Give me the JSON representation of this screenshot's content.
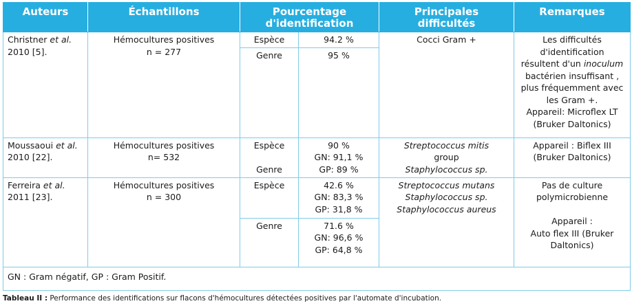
{
  "headers": {
    "auteurs": "Auteurs",
    "echantillons": "Échantillons",
    "pourcentage_1": "Pourcentage",
    "pourcentage_2": "d'identification",
    "difficultes_1": "Principales",
    "difficultes_2": "difficultés",
    "remarques": "Remarques"
  },
  "rows": [
    {
      "author_a": "Christner ",
      "author_etal": "et al.",
      "author_b": "2010 [5].",
      "sample_1": "Hémocultures positives",
      "sample_2": "n = 277",
      "espece_label": "Espèce",
      "espece_val": "94.2 %",
      "genre_label": "Genre",
      "genre_val": "95 %",
      "difficulty": "Cocci Gram +",
      "remark_1": "Les difficultés",
      "remark_2": "d'identification",
      "remark_3a": "résultent d'un ",
      "remark_3b": "inoculum",
      "remark_4": "bactérien insuffisant ,",
      "remark_5": "plus fréquemment avec",
      "remark_6": "les Gram +.",
      "remark_7": "Appareil: Microflex LT",
      "remark_8": "(Bruker Daltonics)"
    },
    {
      "author_a": "Moussaoui ",
      "author_etal": "et al.",
      "author_b": "2010 [22].",
      "sample_1": "Hémocultures positives",
      "sample_2": "n= 532",
      "espece_label": "Espèce",
      "genre_label": "Genre",
      "val_1": "90 %",
      "val_2": "GN: 91,1 %",
      "val_3": "GP: 89 %",
      "diff_1": "Streptococcus mitis",
      "diff_2": "group",
      "diff_3": "Staphylococcus sp.",
      "remark_1": "Appareil : Biflex III",
      "remark_2": "(Bruker Daltonics)"
    },
    {
      "author_a": "Ferreira ",
      "author_etal": "et al.",
      "author_b": "2011 [23].",
      "sample_1": "Hémocultures positives",
      "sample_2": "n = 300",
      "espece_label": "Espèce",
      "espece_1": "42.6 %",
      "espece_2": "GN: 83,3 %",
      "espece_3": "GP: 31,8 %",
      "genre_label": "Genre",
      "genre_1": "71.6 %",
      "genre_2": "GN: 96,6 %",
      "genre_3": "GP: 64,8 %",
      "diff_1": "Streptococcus mutans",
      "diff_2": "Staphylococcus sp.",
      "diff_3": "Staphylococcus aureus",
      "remark_1": "Pas de culture",
      "remark_2": "polymicrobienne",
      "remark_3": "Appareil :",
      "remark_4": "Auto flex III (Bruker",
      "remark_5": "Daltonics)"
    }
  ],
  "footnote": "GN : Gram négatif, GP : Gram Positif.",
  "caption": {
    "label": "Tableau II :",
    "text": " Performance des identifications sur flacons d'hémocultures détectées positives par l'automate d'incubation."
  }
}
